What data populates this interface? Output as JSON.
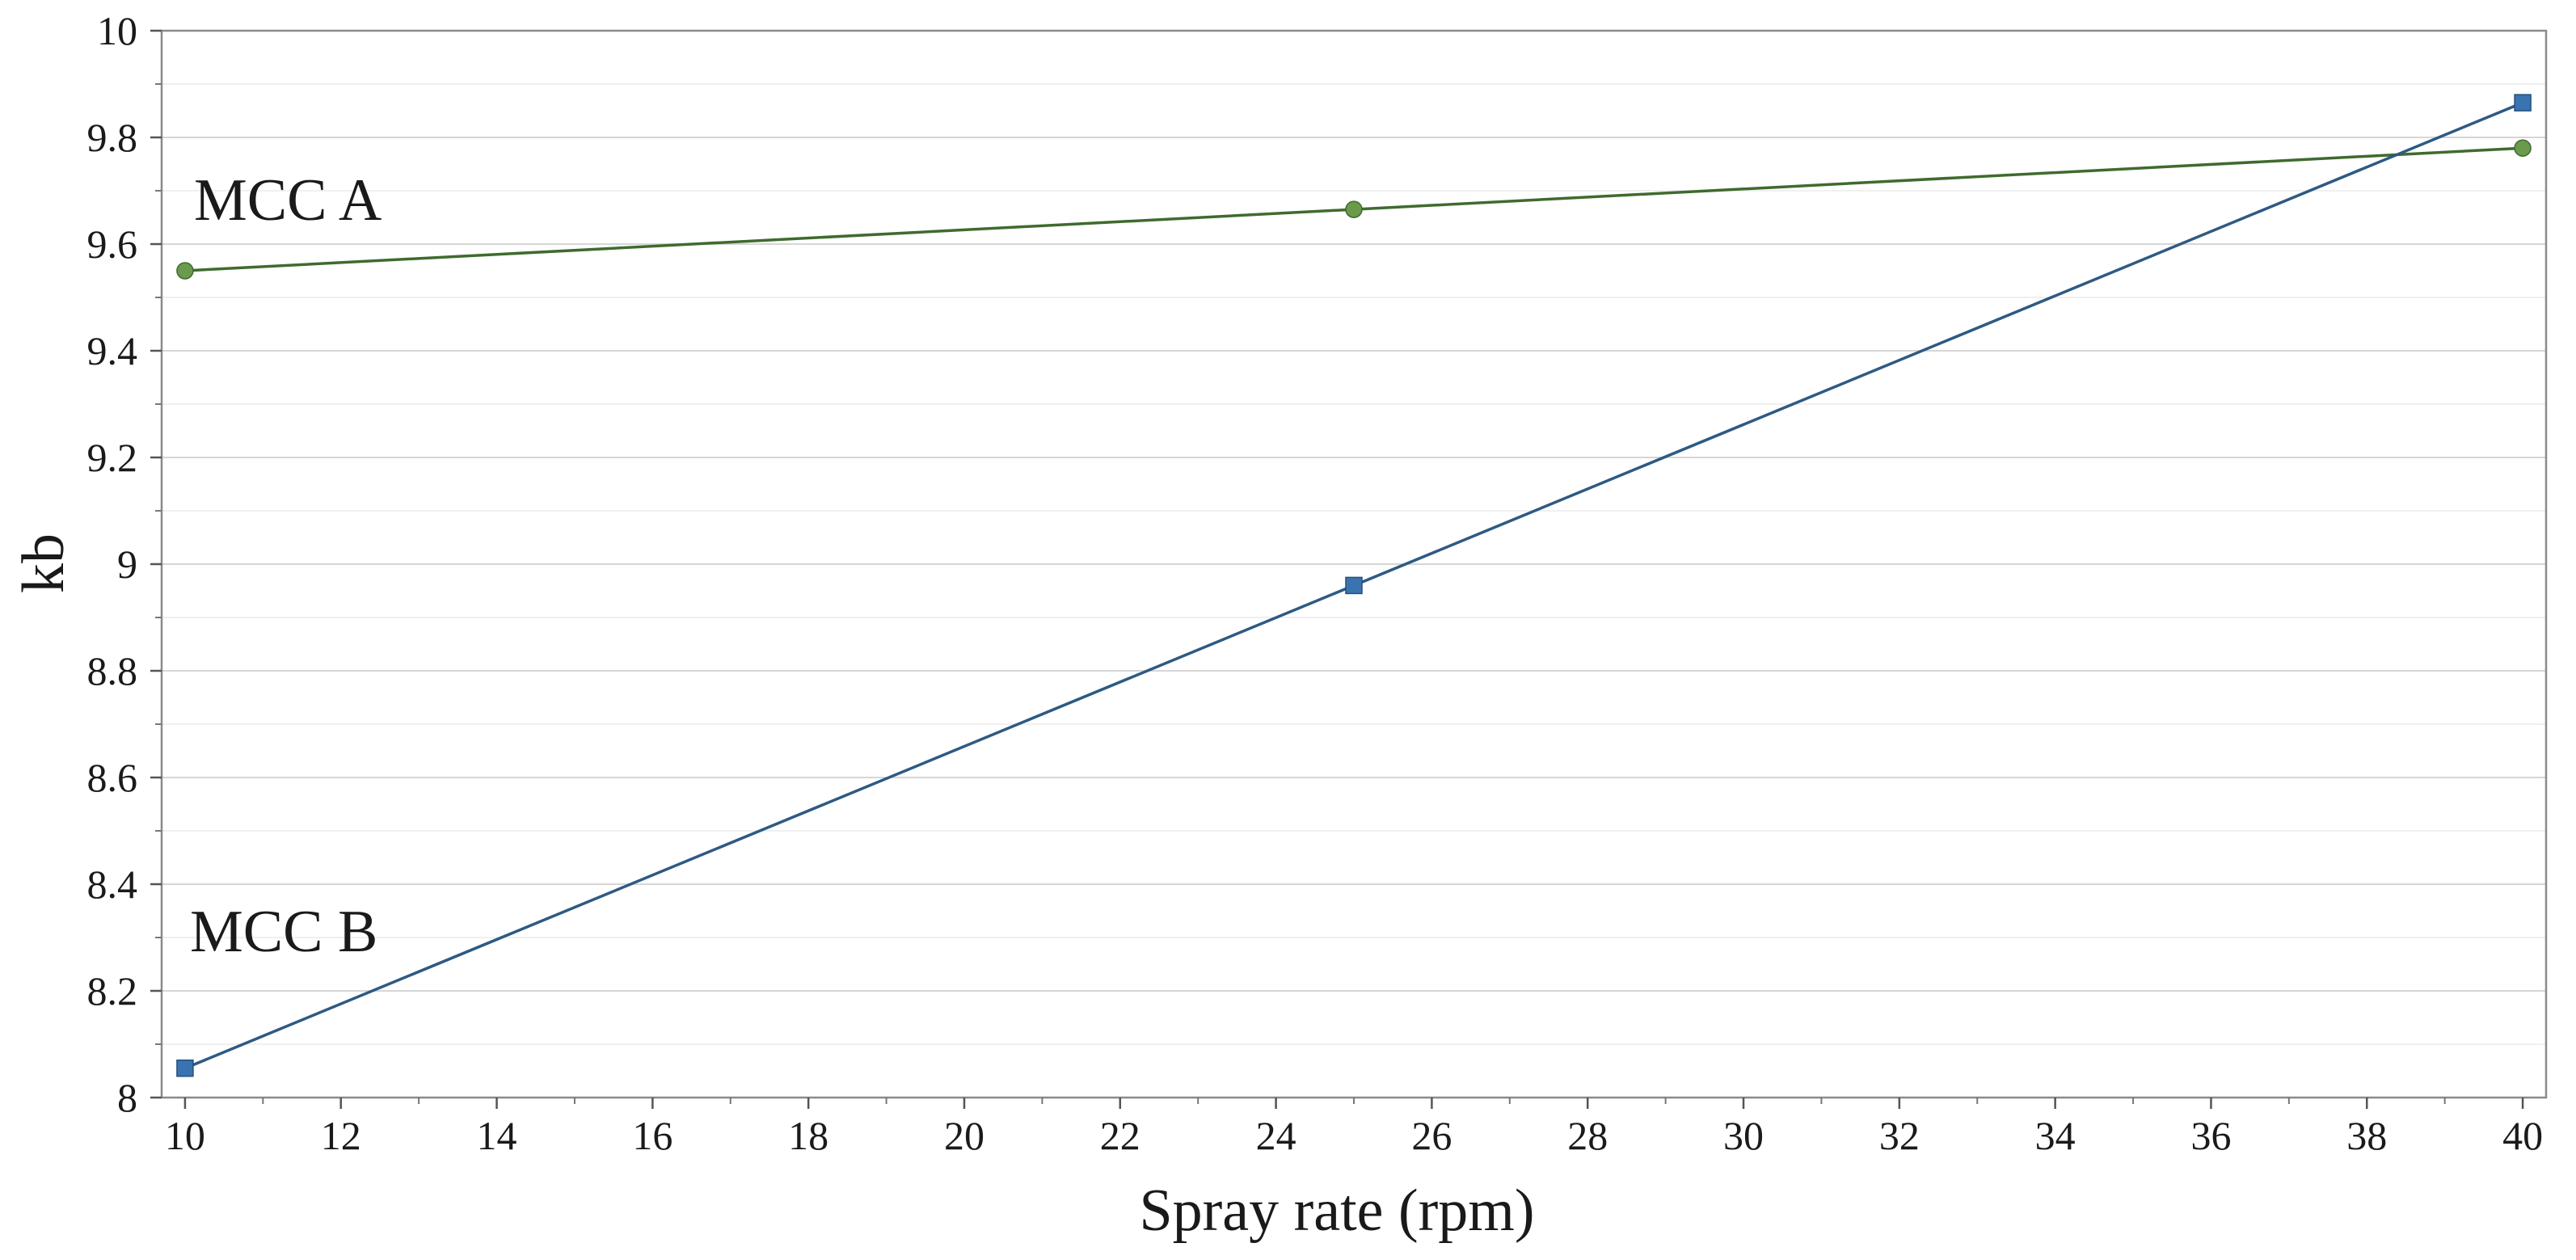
{
  "chart_data": {
    "type": "line",
    "title": "",
    "xlabel": "Spray rate (rpm)",
    "ylabel": "kb",
    "xlim": [
      9.7,
      40.3
    ],
    "ylim": [
      8,
      10
    ],
    "grid": true,
    "x_ticks": [
      10,
      12,
      14,
      16,
      18,
      20,
      22,
      24,
      26,
      28,
      30,
      32,
      34,
      36,
      38,
      40
    ],
    "y_ticks": [
      8,
      8.2,
      8.4,
      8.6,
      8.8,
      9,
      9.2,
      9.4,
      9.6,
      9.8,
      10
    ],
    "x_tick_labels": [
      "10",
      "12",
      "14",
      "16",
      "18",
      "20",
      "22",
      "24",
      "26",
      "28",
      "30",
      "32",
      "34",
      "36",
      "38",
      "40"
    ],
    "y_tick_labels": [
      "8",
      "8.2",
      "8.4",
      "8.6",
      "8.8",
      "9",
      "9.2",
      "9.4",
      "9.6",
      "9.8",
      "10"
    ],
    "series": [
      {
        "name": "MCC A",
        "marker": "circle",
        "color": "#6a9a4c",
        "line_color": "#3f6b2e",
        "x": [
          10,
          25,
          40
        ],
        "y": [
          9.55,
          9.665,
          9.78
        ]
      },
      {
        "name": "MCC B",
        "marker": "square",
        "color": "#3a74b0",
        "line_color": "#2d5a82",
        "x": [
          10,
          25,
          40
        ],
        "y": [
          8.055,
          8.96,
          9.865
        ]
      }
    ],
    "annotations": [
      {
        "text": "MCC A",
        "series": "MCC A"
      },
      {
        "text": "MCC B",
        "series": "MCC B"
      }
    ]
  }
}
